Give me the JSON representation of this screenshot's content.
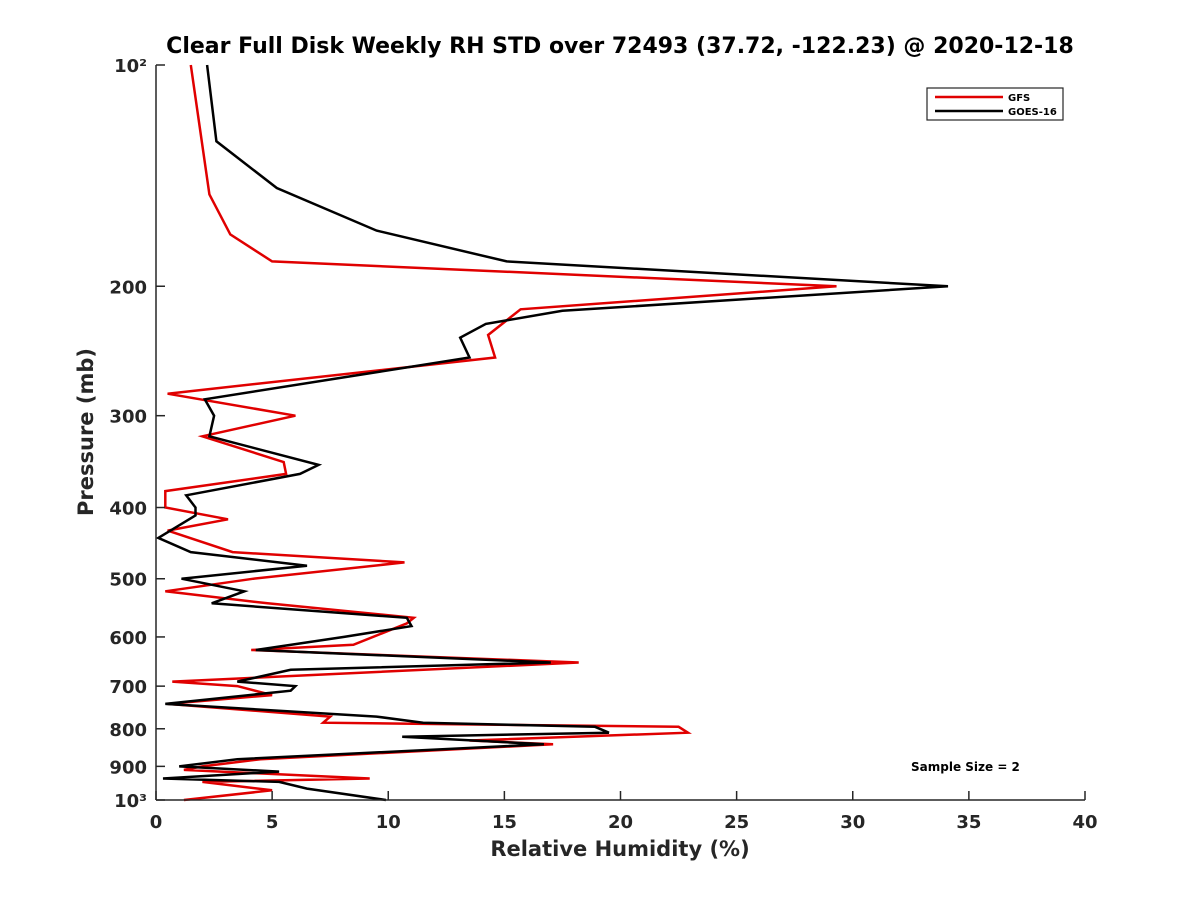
{
  "chart_data": {
    "type": "line",
    "title": "Clear Full Disk Weekly RH STD over 72493 (37.72, -122.23) @ 2020-12-18",
    "xlabel": "Relative Humidity (%)",
    "ylabel": "Pressure (mb)",
    "xlim": [
      0,
      40
    ],
    "ylim": [
      1000,
      100
    ],
    "y_scale": "log",
    "y_reversed": true,
    "grid": false,
    "legend_position": "top-right",
    "x_ticks": [
      0,
      5,
      10,
      15,
      20,
      25,
      30,
      35,
      40
    ],
    "x_tick_labels": [
      "0",
      "5",
      "10",
      "15",
      "20",
      "25",
      "30",
      "35",
      "40"
    ],
    "y_ticks": [
      100,
      200,
      300,
      400,
      500,
      600,
      700,
      800,
      900,
      1000
    ],
    "y_tick_labels": [
      "10²",
      "200",
      "300",
      "400",
      "500",
      "600",
      "700",
      "800",
      "900",
      "10³"
    ],
    "annotation": "Sample Size = 2",
    "series": [
      {
        "name": "GFS",
        "color": "#e00000",
        "points": [
          {
            "x": 1.5,
            "y": 100
          },
          {
            "x": 2.3,
            "y": 150
          },
          {
            "x": 3.2,
            "y": 170
          },
          {
            "x": 5.0,
            "y": 185
          },
          {
            "x": 29.3,
            "y": 200
          },
          {
            "x": 15.7,
            "y": 215
          },
          {
            "x": 14.3,
            "y": 233
          },
          {
            "x": 14.6,
            "y": 250
          },
          {
            "x": 0.5,
            "y": 280
          },
          {
            "x": 6.0,
            "y": 300
          },
          {
            "x": 2.0,
            "y": 320
          },
          {
            "x": 5.5,
            "y": 347
          },
          {
            "x": 5.6,
            "y": 360
          },
          {
            "x": 0.4,
            "y": 380
          },
          {
            "x": 0.4,
            "y": 400
          },
          {
            "x": 3.1,
            "y": 415
          },
          {
            "x": 0.5,
            "y": 430
          },
          {
            "x": 3.3,
            "y": 460
          },
          {
            "x": 10.7,
            "y": 475
          },
          {
            "x": 4.2,
            "y": 500
          },
          {
            "x": 0.4,
            "y": 520
          },
          {
            "x": 4.8,
            "y": 540
          },
          {
            "x": 11.1,
            "y": 565
          },
          {
            "x": 10.8,
            "y": 575
          },
          {
            "x": 8.5,
            "y": 615
          },
          {
            "x": 4.1,
            "y": 625
          },
          {
            "x": 18.2,
            "y": 650
          },
          {
            "x": 0.7,
            "y": 690
          },
          {
            "x": 3.5,
            "y": 700
          },
          {
            "x": 5.0,
            "y": 720
          },
          {
            "x": 0.5,
            "y": 740
          },
          {
            "x": 7.5,
            "y": 770
          },
          {
            "x": 7.2,
            "y": 785
          },
          {
            "x": 22.5,
            "y": 795
          },
          {
            "x": 22.9,
            "y": 810
          },
          {
            "x": 13.5,
            "y": 830
          },
          {
            "x": 17.1,
            "y": 840
          },
          {
            "x": 4.5,
            "y": 880
          },
          {
            "x": 2.0,
            "y": 900
          },
          {
            "x": 1.2,
            "y": 910
          },
          {
            "x": 9.2,
            "y": 935
          },
          {
            "x": 2.0,
            "y": 945
          },
          {
            "x": 5.0,
            "y": 970
          },
          {
            "x": 1.2,
            "y": 1000
          }
        ]
      },
      {
        "name": "GOES-16",
        "color": "#000000",
        "points": [
          {
            "x": 2.2,
            "y": 100
          },
          {
            "x": 2.6,
            "y": 127
          },
          {
            "x": 5.2,
            "y": 147
          },
          {
            "x": 9.5,
            "y": 168
          },
          {
            "x": 15.1,
            "y": 185
          },
          {
            "x": 34.1,
            "y": 200
          },
          {
            "x": 17.5,
            "y": 216
          },
          {
            "x": 14.2,
            "y": 225
          },
          {
            "x": 13.1,
            "y": 235
          },
          {
            "x": 13.5,
            "y": 250
          },
          {
            "x": 2.1,
            "y": 285
          },
          {
            "x": 2.5,
            "y": 300
          },
          {
            "x": 2.3,
            "y": 320
          },
          {
            "x": 7.0,
            "y": 350
          },
          {
            "x": 6.2,
            "y": 360
          },
          {
            "x": 1.3,
            "y": 385
          },
          {
            "x": 1.7,
            "y": 400
          },
          {
            "x": 1.7,
            "y": 410
          },
          {
            "x": 0.1,
            "y": 440
          },
          {
            "x": 1.5,
            "y": 460
          },
          {
            "x": 6.5,
            "y": 480
          },
          {
            "x": 1.1,
            "y": 500
          },
          {
            "x": 3.8,
            "y": 520
          },
          {
            "x": 2.4,
            "y": 540
          },
          {
            "x": 10.8,
            "y": 565
          },
          {
            "x": 11.0,
            "y": 580
          },
          {
            "x": 8.1,
            "y": 600
          },
          {
            "x": 4.3,
            "y": 625
          },
          {
            "x": 17.0,
            "y": 650
          },
          {
            "x": 5.8,
            "y": 665
          },
          {
            "x": 3.5,
            "y": 690
          },
          {
            "x": 6.0,
            "y": 700
          },
          {
            "x": 5.8,
            "y": 710
          },
          {
            "x": 0.4,
            "y": 740
          },
          {
            "x": 9.5,
            "y": 770
          },
          {
            "x": 11.5,
            "y": 785
          },
          {
            "x": 18.9,
            "y": 795
          },
          {
            "x": 19.5,
            "y": 810
          },
          {
            "x": 10.6,
            "y": 820
          },
          {
            "x": 16.7,
            "y": 840
          },
          {
            "x": 3.5,
            "y": 880
          },
          {
            "x": 1.0,
            "y": 900
          },
          {
            "x": 5.3,
            "y": 915
          },
          {
            "x": 0.3,
            "y": 935
          },
          {
            "x": 5.3,
            "y": 945
          },
          {
            "x": 6.5,
            "y": 965
          },
          {
            "x": 9.9,
            "y": 1000
          }
        ]
      }
    ]
  }
}
